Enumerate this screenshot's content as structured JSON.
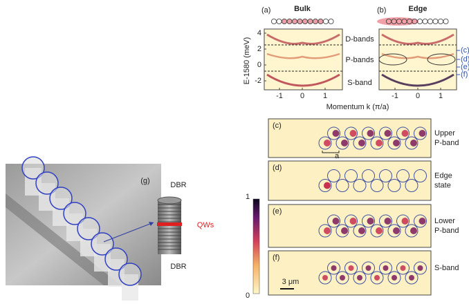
{
  "panel_a": {
    "label": "(a)",
    "title": "Bulk"
  },
  "panel_b": {
    "label": "(b)",
    "title": "Edge"
  },
  "dispersion_axes": {
    "y_label": "E-1580 (meV)",
    "x_label": "Momentum k (π/a)",
    "yticks": [
      4,
      2,
      0,
      -2
    ],
    "xticks": [
      -1,
      0,
      1
    ]
  },
  "band_labels": [
    "D-bands",
    "P-bands",
    "S-band"
  ],
  "mode_markers": [
    "(c)",
    "(d)",
    "(e)",
    "(f)"
  ],
  "maps": [
    {
      "label": "(c)",
      "name": "Upper P-band"
    },
    {
      "label": "(d)",
      "name": "Edge state"
    },
    {
      "label": "(e)",
      "name": "Lower P-band"
    },
    {
      "label": "(f)",
      "name": "S-band"
    }
  ],
  "lattice_constant": "a",
  "scale_bar": "3 μm",
  "colorbar": {
    "max": "1",
    "min": "0"
  },
  "panel_g": {
    "label": "(g)",
    "top": "DBR",
    "middle": "QWs",
    "bottom": "DBR"
  }
}
